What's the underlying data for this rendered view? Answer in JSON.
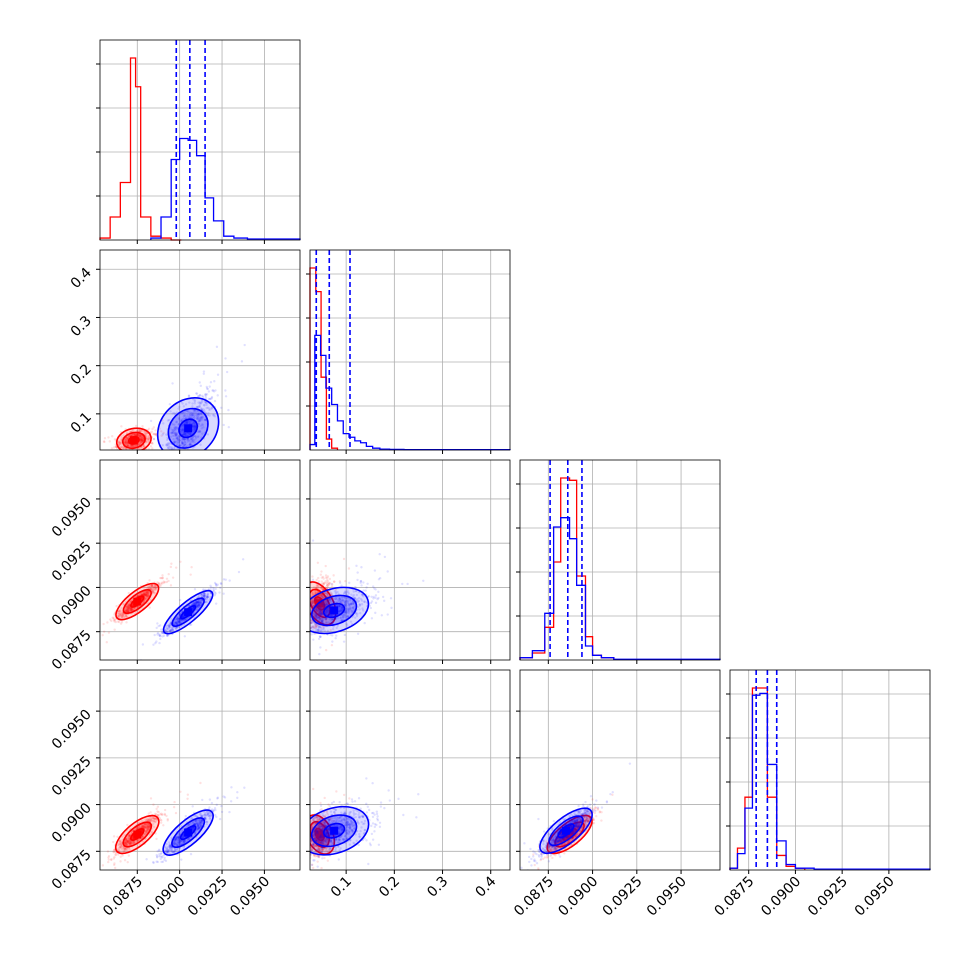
{
  "chart_data": {
    "type": "corner",
    "title": "",
    "colors": {
      "red": "#ff0000",
      "blue": "#0000ff",
      "grid": "#b0b0b0",
      "axis": "#000000"
    },
    "grid": true,
    "parameters": [
      {
        "range": [
          0.0853,
          0.0971
        ],
        "ticks": [
          0.0875,
          0.09,
          0.0925,
          0.095
        ],
        "tick_labels": [
          "0.0875",
          "0.0900",
          "0.0925",
          "0.0950"
        ]
      },
      {
        "range": [
          0.025,
          0.44
        ],
        "ticks": [
          0.1,
          0.2,
          0.3,
          0.4
        ],
        "tick_labels": [
          "0.1",
          "0.2",
          "0.3",
          "0.4"
        ]
      },
      {
        "range": [
          0.0859,
          0.0972
        ],
        "ticks": [
          0.0875,
          0.09,
          0.0925,
          0.095
        ],
        "tick_labels": [
          "0.0875",
          "0.0900",
          "0.0925",
          "0.0950"
        ]
      },
      {
        "range": [
          0.0865,
          0.0972
        ],
        "ticks": [
          0.0875,
          0.09,
          0.0925,
          0.095
        ],
        "tick_labels": [
          "0.0875",
          "0.0900",
          "0.0925",
          "0.0950"
        ]
      }
    ],
    "histograms": [
      {
        "param": 0,
        "red": {
          "edges": [
            0.0853,
            0.0859,
            0.0865,
            0.0871,
            0.0874,
            0.0877,
            0.0883,
            0.0889,
            0.0895,
            0.0901
          ],
          "counts": [
            1,
            12,
            30,
            95,
            80,
            12,
            2,
            1,
            0
          ]
        },
        "blue": {
          "edges": [
            0.0883,
            0.0889,
            0.0895,
            0.09,
            0.0905,
            0.091,
            0.0915,
            0.092,
            0.0926,
            0.0932,
            0.094,
            0.095,
            0.0971
          ],
          "counts": [
            1,
            12,
            42,
            53,
            52,
            44,
            22,
            10,
            2,
            1,
            0.5,
            0.5
          ]
        },
        "blue_quantiles": [
          0.0898,
          0.0906,
          0.0915
        ]
      },
      {
        "param": 1,
        "red": {
          "edges": [
            0.025,
            0.037,
            0.048,
            0.059,
            0.07,
            0.082
          ],
          "counts": [
            100,
            87,
            40,
            6,
            1
          ]
        },
        "blue": {
          "edges": [
            0.025,
            0.035,
            0.047,
            0.058,
            0.07,
            0.082,
            0.094,
            0.106,
            0.118,
            0.13,
            0.142,
            0.155,
            0.17,
            0.19,
            0.22,
            0.44
          ],
          "counts": [
            3,
            63,
            52,
            34,
            25,
            16,
            9,
            7,
            5,
            4,
            2,
            1,
            0.5,
            0.3,
            0.2
          ]
        },
        "blue_quantiles": [
          0.038,
          0.065,
          0.108
        ]
      },
      {
        "param": 2,
        "red": {
          "edges": [
            0.0859,
            0.0866,
            0.0873,
            0.0878,
            0.0882,
            0.0887,
            0.0891,
            0.0896,
            0.09,
            0.0905,
            0.0912
          ],
          "counts": [
            1,
            3,
            14,
            42,
            78,
            77,
            36,
            10,
            2,
            1
          ]
        },
        "blue": {
          "edges": [
            0.0859,
            0.0866,
            0.0873,
            0.0878,
            0.0882,
            0.0887,
            0.0891,
            0.0896,
            0.09,
            0.0905,
            0.0912,
            0.0972
          ],
          "counts": [
            1,
            4,
            20,
            57,
            61,
            52,
            32,
            6,
            2,
            1,
            0.3
          ]
        },
        "blue_quantiles": [
          0.0876,
          0.0886,
          0.0894
        ]
      },
      {
        "param": 3,
        "red": {
          "edges": [
            0.0865,
            0.0869,
            0.0873,
            0.0877,
            0.0881,
            0.0885,
            0.089,
            0.0895,
            0.09,
            0.0905
          ],
          "counts": [
            1,
            12,
            40,
            100,
            100,
            40,
            8,
            2,
            1
          ]
        },
        "blue": {
          "edges": [
            0.0865,
            0.0869,
            0.0873,
            0.0877,
            0.0881,
            0.0885,
            0.089,
            0.0895,
            0.09,
            0.091,
            0.0972
          ],
          "counts": [
            1,
            9,
            34,
            96,
            97,
            58,
            16,
            3,
            1,
            0.5
          ]
        },
        "blue_quantiles": [
          0.0879,
          0.0885,
          0.089
        ]
      }
    ],
    "scatter_panels": [
      {
        "x_param": 0,
        "y_param": 1,
        "red": {
          "cx": 0.0873,
          "cy": 0.045,
          "sx": 0.0005,
          "sy": 0.01,
          "rho": 0.4
        },
        "blue": {
          "cx": 0.0905,
          "cy": 0.07,
          "sx": 0.0007,
          "sy": 0.035,
          "rho": 0.7
        }
      },
      {
        "x_param": 0,
        "y_param": 2,
        "red": {
          "cx": 0.0875,
          "cy": 0.0892,
          "sx": 0.0006,
          "sy": 0.0005,
          "rho": 0.92
        },
        "blue": {
          "cx": 0.0905,
          "cy": 0.0886,
          "sx": 0.0007,
          "sy": 0.0006,
          "rho": 0.95
        }
      },
      {
        "x_param": 1,
        "y_param": 2,
        "red": {
          "cx": 0.045,
          "cy": 0.0891,
          "sx": 0.012,
          "sy": 0.0006,
          "rho": 0.3
        },
        "blue": {
          "cx": 0.075,
          "cy": 0.0887,
          "sx": 0.035,
          "sy": 0.0006,
          "rho": 0.5
        }
      },
      {
        "x_param": 0,
        "y_param": 3,
        "red": {
          "cx": 0.0875,
          "cy": 0.0884,
          "sx": 0.0006,
          "sy": 0.0005,
          "rho": 0.9
        },
        "blue": {
          "cx": 0.0905,
          "cy": 0.0885,
          "sx": 0.0007,
          "sy": 0.0006,
          "rho": 0.92
        }
      },
      {
        "x_param": 1,
        "y_param": 3,
        "red": {
          "cx": 0.045,
          "cy": 0.0884,
          "sx": 0.012,
          "sy": 0.0005,
          "rho": 0.3
        },
        "blue": {
          "cx": 0.075,
          "cy": 0.0886,
          "sx": 0.035,
          "sy": 0.0006,
          "rho": 0.5
        }
      },
      {
        "x_param": 2,
        "y_param": 3,
        "red": {
          "cx": 0.0887,
          "cy": 0.0884,
          "sx": 0.0006,
          "sy": 0.0005,
          "rho": 0.9
        },
        "blue": {
          "cx": 0.0885,
          "cy": 0.0886,
          "sx": 0.0007,
          "sy": 0.0006,
          "rho": 0.9
        }
      }
    ]
  }
}
